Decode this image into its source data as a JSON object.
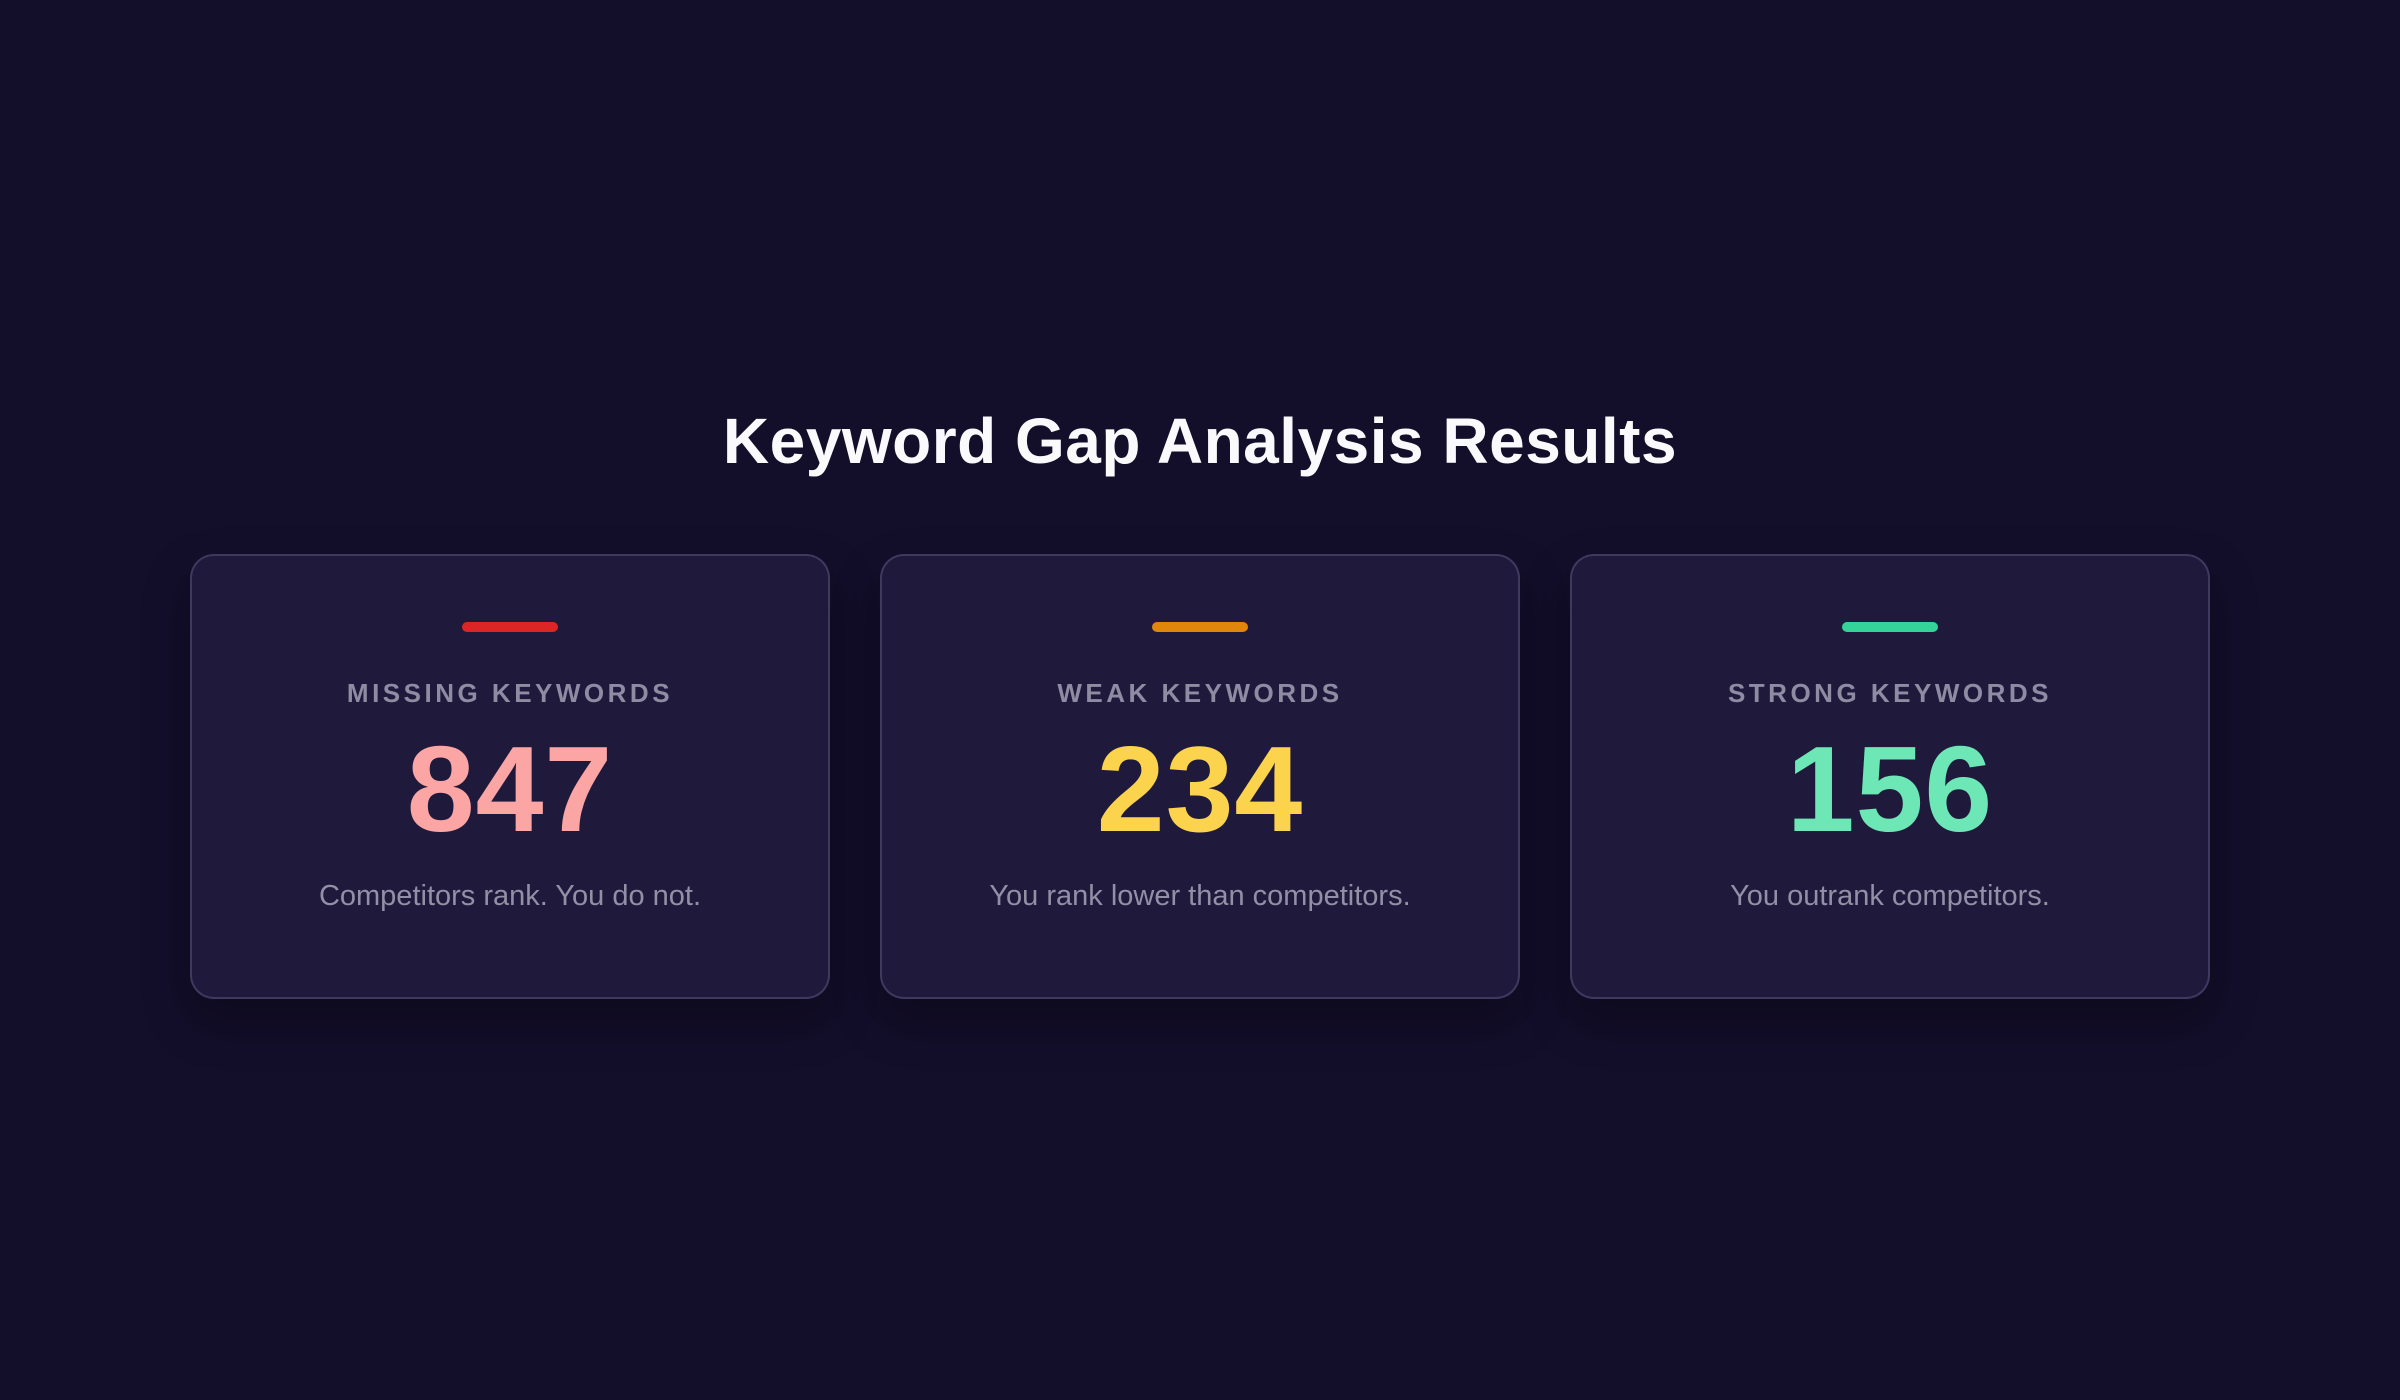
{
  "page": {
    "title": "Keyword Gap Analysis Results",
    "background_color": "#130e2a",
    "card_background_color": "#1f1a3b"
  },
  "cards": [
    {
      "label": "MISSING KEYWORDS",
      "value": "847",
      "description": "Competitors rank. You do not.",
      "accent_color": "#dc2626",
      "value_color": "#fca5a5"
    },
    {
      "label": "WEAK KEYWORDS",
      "value": "234",
      "description": "You rank lower than competitors.",
      "accent_color": "#e0860a",
      "value_color": "#fcd34d"
    },
    {
      "label": "STRONG KEYWORDS",
      "value": "156",
      "description": "You outrank competitors.",
      "accent_color": "#34d399",
      "value_color": "#6ee7b7"
    }
  ]
}
